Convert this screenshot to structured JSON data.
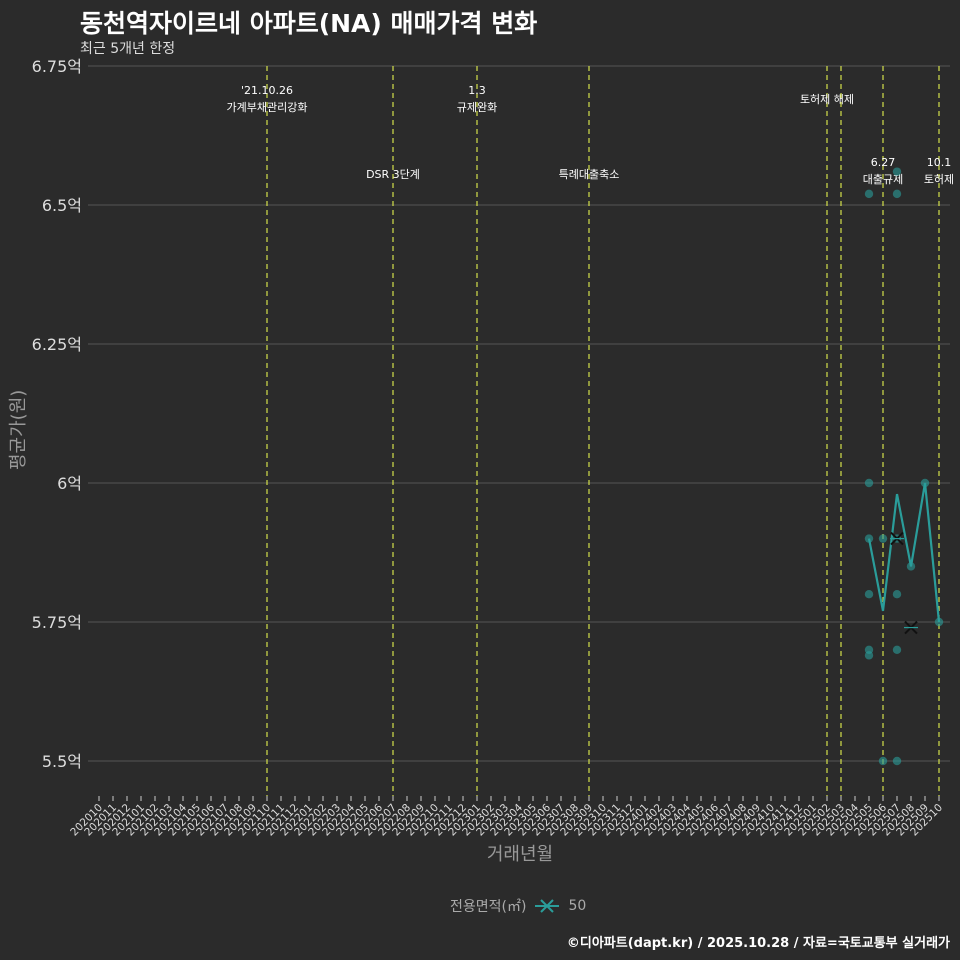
{
  "header": {
    "title": "동천역자이르네 아파트(NA) 매매가격 변화",
    "subtitle": "최근 5개년 한정"
  },
  "axes": {
    "ylabel": "평균가(원)",
    "xlabel": "거래년월"
  },
  "legend": {
    "title": "전용면적(㎡)",
    "item": "50"
  },
  "footer": "©디아파트(dapt.kr) / 2025.10.28 / 자료=국토교통부 실거래가",
  "colors": {
    "background": "#2b2b2b",
    "series": "#2a9d9a",
    "event_line": "#d4e04a",
    "grid": "#555555"
  },
  "chart_data": {
    "type": "line",
    "title": "동천역자이르네 아파트(NA) 매매가격 변화",
    "subtitle": "최근 5개년 한정",
    "xlabel": "거래년월",
    "ylabel": "평균가(원)",
    "ylim": [
      5.45,
      6.76
    ],
    "yticks": [
      5.5,
      5.75,
      6.0,
      6.25,
      6.5,
      6.75
    ],
    "ytick_labels": [
      "5.5억",
      "5.75억",
      "6억",
      "6.25억",
      "6.5억",
      "6.75억"
    ],
    "x_categories": [
      "202010",
      "202011",
      "202012",
      "202101",
      "202102",
      "202103",
      "202104",
      "202105",
      "202106",
      "202107",
      "202108",
      "202109",
      "202110",
      "202111",
      "202112",
      "202201",
      "202202",
      "202203",
      "202204",
      "202205",
      "202206",
      "202207",
      "202208",
      "202209",
      "202210",
      "202211",
      "202212",
      "202301",
      "202302",
      "202303",
      "202304",
      "202305",
      "202306",
      "202307",
      "202308",
      "202309",
      "202310",
      "202311",
      "202312",
      "202401",
      "202402",
      "202403",
      "202404",
      "202405",
      "202406",
      "202407",
      "202408",
      "202409",
      "202410",
      "202411",
      "202412",
      "202501",
      "202502",
      "202503",
      "202504",
      "202505",
      "202506",
      "202507",
      "202508",
      "202509",
      "202510"
    ],
    "series": [
      {
        "name": "50",
        "line": [
          {
            "x": "202505",
            "y": 5.9
          },
          {
            "x": "202506",
            "y": 5.77
          },
          {
            "x": "202507",
            "y": 5.98
          },
          {
            "x": "202508",
            "y": 5.85
          },
          {
            "x": "202509",
            "y": 6.0
          },
          {
            "x": "202510",
            "y": 5.75
          }
        ],
        "points": [
          {
            "x": "202505",
            "y": 6.52
          },
          {
            "x": "202505",
            "y": 6.0
          },
          {
            "x": "202505",
            "y": 5.9
          },
          {
            "x": "202505",
            "y": 5.8
          },
          {
            "x": "202505",
            "y": 5.7
          },
          {
            "x": "202505",
            "y": 5.69
          },
          {
            "x": "202506",
            "y": 5.9
          },
          {
            "x": "202506",
            "y": 5.5
          },
          {
            "x": "202507",
            "y": 6.56
          },
          {
            "x": "202507",
            "y": 6.52
          },
          {
            "x": "202507",
            "y": 5.9
          },
          {
            "x": "202507",
            "y": 5.8
          },
          {
            "x": "202507",
            "y": 5.7
          },
          {
            "x": "202507",
            "y": 5.5
          },
          {
            "x": "202508",
            "y": 5.85
          },
          {
            "x": "202509",
            "y": 6.0
          },
          {
            "x": "202510",
            "y": 5.75
          }
        ],
        "cross_markers": [
          {
            "x": "202507",
            "y": 5.9
          },
          {
            "x": "202508",
            "y": 5.74
          }
        ]
      }
    ],
    "annotations": [
      {
        "x": "202110",
        "label_top": "'21.10.26",
        "label_bottom": "가계부채관리강화",
        "row": 1
      },
      {
        "x": "202207",
        "label_top": "",
        "label_bottom": "DSR 3단계",
        "row": 2
      },
      {
        "x": "202301",
        "label_top": "1.3",
        "label_bottom": "규제완화",
        "row": 1
      },
      {
        "x": "202309",
        "label_top": "",
        "label_bottom": "특례대출축소",
        "row": 2
      },
      {
        "x": "202502",
        "label_top": "",
        "label_bottom": "토허제 해제",
        "row": 1
      },
      {
        "x": "202503",
        "label_top": "",
        "label_bottom": "",
        "row": 1
      },
      {
        "x": "202506",
        "label_top": "6.27",
        "label_bottom": "대출규제",
        "row": 2
      },
      {
        "x": "202510",
        "label_top": "10.1",
        "label_bottom": "토허제",
        "row": 2
      }
    ],
    "legend_position": "bottom",
    "grid": true
  }
}
